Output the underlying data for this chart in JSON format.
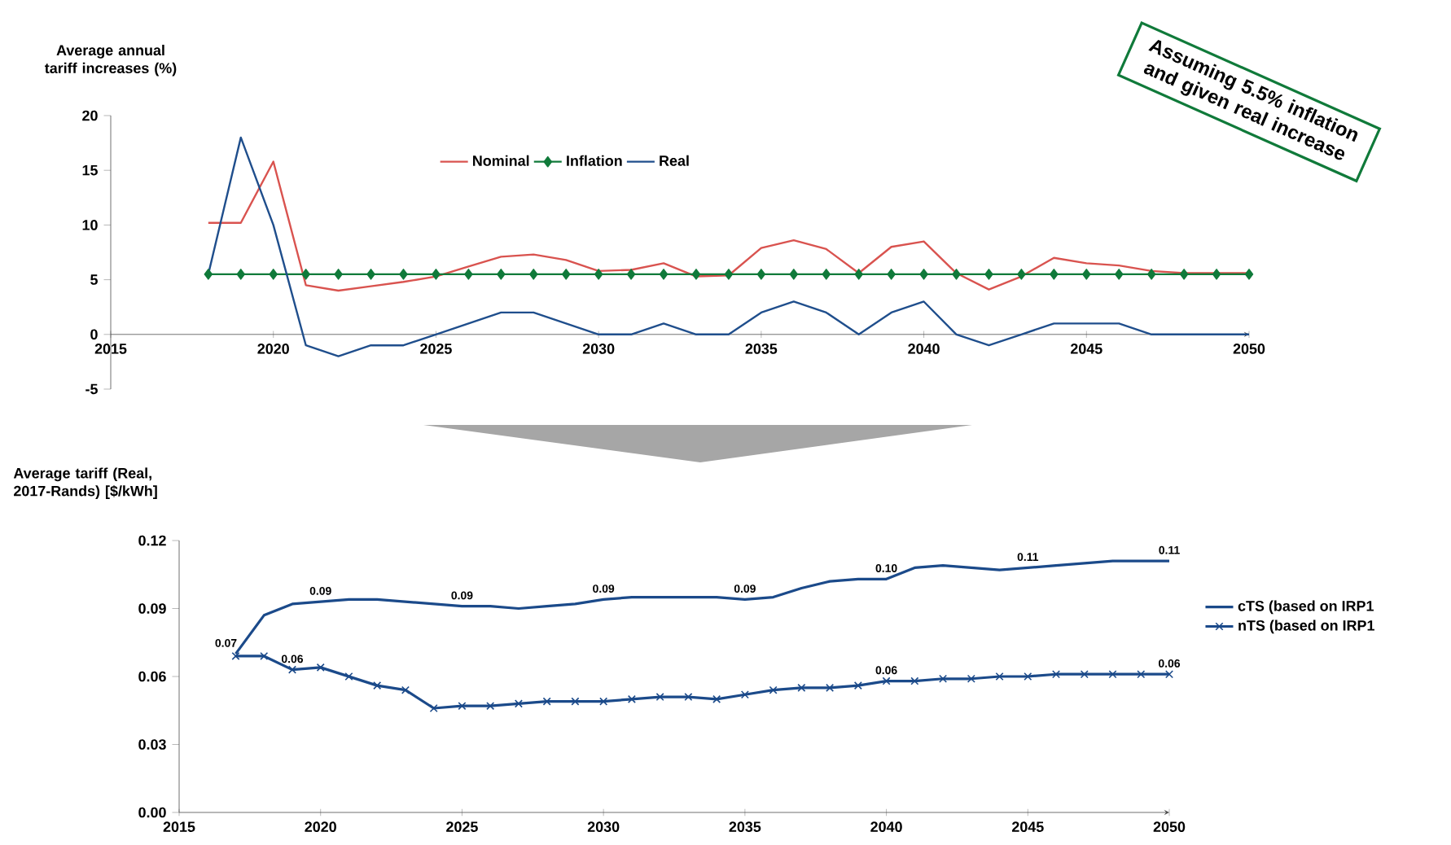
{
  "chart_data": [
    {
      "type": "line",
      "ylabel": "Average annual tariff increases (%)",
      "x": [
        2018,
        2019,
        2020,
        2021,
        2022,
        2023,
        2024,
        2025,
        2026,
        2027,
        2028,
        2029,
        2030,
        2031,
        2032,
        2033,
        2034,
        2035,
        2036,
        2037,
        2038,
        2039,
        2040,
        2041,
        2042,
        2043,
        2044,
        2045,
        2046,
        2047,
        2048,
        2049,
        2050
      ],
      "xlim": [
        2015,
        2050
      ],
      "ylim": [
        -5,
        20
      ],
      "xticks": [
        2015,
        2020,
        2025,
        2030,
        2035,
        2040,
        2045,
        2050
      ],
      "yticks": [
        -5,
        0,
        5,
        10,
        15,
        20
      ],
      "legend": "top",
      "line_style": "solid",
      "series": [
        {
          "name": "Nominal",
          "color": "#d9534f",
          "values": [
            10.2,
            10.2,
            15.8,
            4.5,
            4.0,
            4.4,
            4.8,
            5.3,
            6.2,
            7.1,
            7.3,
            6.8,
            5.8,
            5.9,
            6.5,
            5.3,
            5.4,
            7.9,
            8.6,
            7.8,
            5.6,
            8.0,
            8.5,
            5.6,
            4.1,
            5.3,
            7.0,
            6.5,
            6.3,
            5.8,
            5.6,
            5.6,
            5.6
          ]
        },
        {
          "name": "Inflation",
          "color": "#107a3a",
          "marker": "diamond",
          "values": [
            5.5,
            5.5,
            5.5,
            5.5,
            5.5,
            5.5,
            5.5,
            5.5,
            5.5,
            5.5,
            5.5,
            5.5,
            5.5,
            5.5,
            5.5,
            5.5,
            5.5,
            5.5,
            5.5,
            5.5,
            5.5,
            5.5,
            5.5,
            5.5,
            5.5,
            5.5,
            5.5,
            5.5,
            5.5,
            5.5,
            5.5,
            5.5,
            5.5
          ]
        },
        {
          "name": "Real",
          "color": "#1f4e8c",
          "values": [
            5.5,
            18,
            10,
            -1,
            -2,
            -1,
            -1,
            0,
            1,
            2,
            2,
            1,
            0,
            0,
            1,
            0,
            0,
            2,
            3,
            2,
            0,
            2,
            3,
            0,
            -1,
            0,
            1,
            1,
            1,
            0,
            0,
            0,
            0
          ]
        }
      ],
      "annotations": [
        "Assuming 5.5% inflation and given real increase"
      ]
    },
    {
      "type": "line",
      "ylabel": "Average tariff (Real, 2017-Rands) [$/kWh]",
      "x": [
        2017,
        2018,
        2019,
        2020,
        2021,
        2022,
        2023,
        2024,
        2025,
        2026,
        2027,
        2028,
        2029,
        2030,
        2031,
        2032,
        2033,
        2034,
        2035,
        2036,
        2037,
        2038,
        2039,
        2040,
        2041,
        2042,
        2043,
        2044,
        2045,
        2046,
        2047,
        2048,
        2049,
        2050
      ],
      "xlim": [
        2015,
        2050
      ],
      "ylim": [
        0,
        0.12
      ],
      "xticks": [
        2015,
        2020,
        2025,
        2030,
        2035,
        2040,
        2045,
        2050
      ],
      "yticks": [
        {
          "value": 0,
          "label": "0.00"
        },
        {
          "value": 0.03,
          "label": "0.03"
        },
        {
          "value": 0.06,
          "label": "0.06"
        },
        {
          "value": 0.09,
          "label": "0.09"
        },
        {
          "value": 0.12,
          "label": "0.12"
        }
      ],
      "legend": "right",
      "line_style": "solid",
      "series": [
        {
          "name": "cTS (based on IRP1",
          "color": "#1b4a8a",
          "values": [
            0.07,
            0.087,
            0.092,
            0.093,
            0.094,
            0.094,
            0.093,
            0.092,
            0.091,
            0.091,
            0.09,
            0.091,
            0.092,
            0.094,
            0.095,
            0.095,
            0.095,
            0.095,
            0.094,
            0.095,
            0.099,
            0.102,
            0.103,
            0.103,
            0.108,
            0.109,
            0.108,
            0.107,
            0.108,
            0.109,
            0.11,
            0.111,
            0.111,
            0.111
          ],
          "value_labels": [
            "0.07",
            null,
            null,
            "0.09",
            null,
            null,
            null,
            null,
            "0.09",
            null,
            null,
            null,
            null,
            "0.09",
            null,
            null,
            null,
            null,
            "0.09",
            null,
            null,
            null,
            null,
            "0.10",
            null,
            null,
            null,
            null,
            "0.11",
            null,
            null,
            null,
            null,
            "0.11"
          ]
        },
        {
          "name": "nTS (based on IRP1",
          "color": "#1b4a8a",
          "marker": "cross",
          "values": [
            0.069,
            0.069,
            0.063,
            0.064,
            0.06,
            0.056,
            0.054,
            0.046,
            0.047,
            0.047,
            0.048,
            0.049,
            0.049,
            0.049,
            0.05,
            0.051,
            0.051,
            0.05,
            0.052,
            0.054,
            0.055,
            0.055,
            0.056,
            0.058,
            0.058,
            0.059,
            0.059,
            0.06,
            0.06,
            0.061,
            0.061,
            0.061,
            0.061,
            0.061
          ],
          "value_labels": [
            null,
            null,
            "0.06",
            null,
            null,
            null,
            null,
            null,
            null,
            null,
            null,
            null,
            null,
            null,
            null,
            null,
            null,
            null,
            null,
            null,
            null,
            null,
            null,
            "0.06",
            null,
            null,
            null,
            null,
            null,
            null,
            null,
            null,
            null,
            "0.06"
          ]
        }
      ]
    }
  ]
}
